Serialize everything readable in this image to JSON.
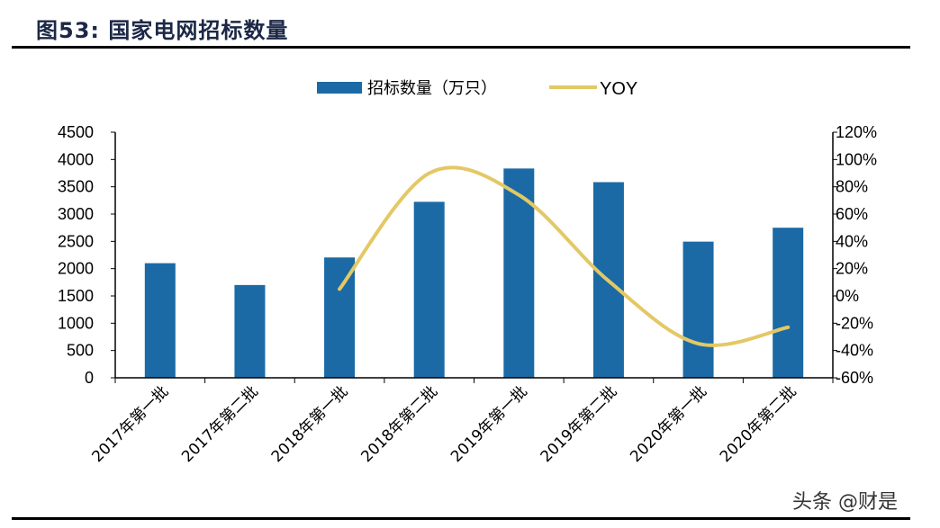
{
  "title": "图53:  国家电网招标数量",
  "watermark": "头条 @财是",
  "colors": {
    "bar": "#1b6aa5",
    "line": "#e3c865",
    "title": "#1c2846"
  },
  "chart_data": {
    "type": "bar+line",
    "categories": [
      "2017年第一批",
      "2017年第二批",
      "2018年第一批",
      "2018年第二批",
      "2019年第一批",
      "2019年第二批",
      "2020年第一批",
      "2020年第二批"
    ],
    "series": [
      {
        "name": "招标数量（万只）",
        "type": "bar",
        "axis": "left",
        "values": [
          2100,
          1700,
          2205,
          3225,
          3835,
          3585,
          2495,
          2750
        ]
      },
      {
        "name": "YOY",
        "type": "line",
        "axis": "right",
        "smooth": true,
        "values": [
          null,
          null,
          5,
          90,
          74,
          11,
          -35,
          -23
        ]
      }
    ],
    "y_left": {
      "range": [
        0,
        4500
      ],
      "ticks": [
        "0",
        "500",
        "1000",
        "1500",
        "2000",
        "2500",
        "3000",
        "3500",
        "4000",
        "4500"
      ]
    },
    "y_right": {
      "range": [
        -60,
        120
      ],
      "ticks": [
        "-60%",
        "-40%",
        "-20%",
        "0%",
        "20%",
        "40%",
        "60%",
        "80%",
        "100%",
        "120%"
      ]
    },
    "legend_position": "top",
    "grid": false
  }
}
